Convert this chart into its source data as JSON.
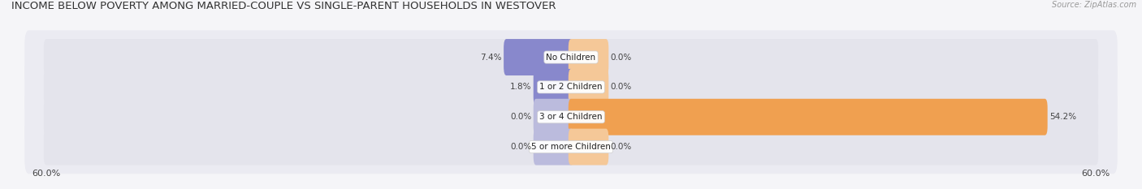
{
  "title": "INCOME BELOW POVERTY AMONG MARRIED-COUPLE VS SINGLE-PARENT HOUSEHOLDS IN WESTOVER",
  "source": "Source: ZipAtlas.com",
  "categories": [
    "No Children",
    "1 or 2 Children",
    "3 or 4 Children",
    "5 or more Children"
  ],
  "married_values": [
    7.4,
    1.8,
    0.0,
    0.0
  ],
  "single_values": [
    0.0,
    0.0,
    54.2,
    0.0
  ],
  "married_color": "#8888cc",
  "single_color": "#f0a050",
  "married_color_light": "#bbbbdd",
  "single_color_light": "#f5c898",
  "axis_limit": 60.0,
  "bg_color": "#f5f5f8",
  "bar_bg_color": "#e4e4ec",
  "row_bg_color": "#ebebf2",
  "title_fontsize": 9.5,
  "source_fontsize": 7,
  "label_fontsize": 7.5,
  "category_fontsize": 7.5,
  "tick_fontsize": 8
}
